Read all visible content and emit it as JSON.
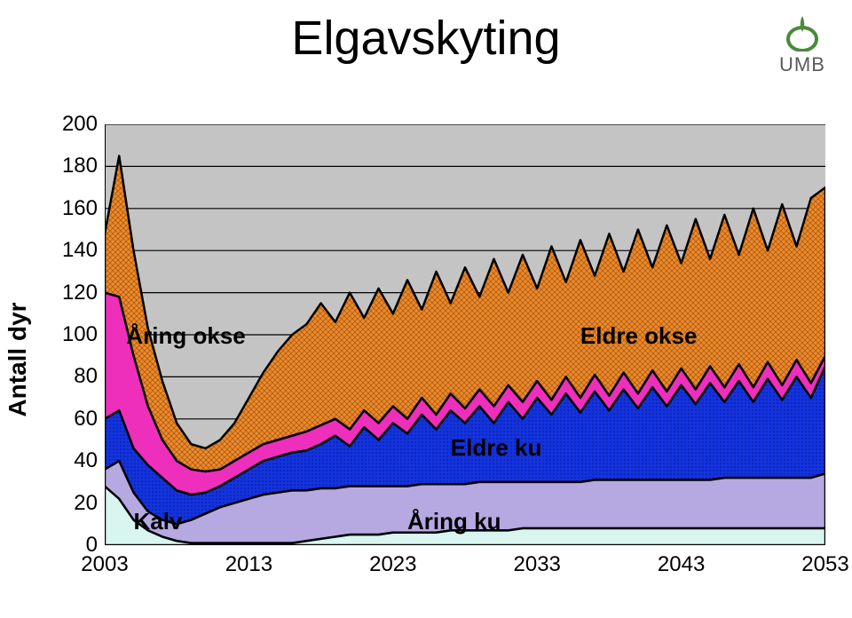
{
  "title": "Elgavskyting",
  "logo_text": "UMB",
  "ylabel": "Antall dyr",
  "chart": {
    "type": "area",
    "background_color": "#c4c4c4",
    "grid_color": "#000000",
    "grid_width": 1.2,
    "xlim": [
      2003,
      2053
    ],
    "ylim": [
      0,
      200
    ],
    "ytick_step": 20,
    "xtick_step": 10,
    "x": [
      2003,
      2004,
      2005,
      2006,
      2007,
      2008,
      2009,
      2010,
      2011,
      2012,
      2013,
      2014,
      2015,
      2016,
      2017,
      2018,
      2019,
      2020,
      2021,
      2022,
      2023,
      2024,
      2025,
      2026,
      2027,
      2028,
      2029,
      2030,
      2031,
      2032,
      2033,
      2034,
      2035,
      2036,
      2037,
      2038,
      2039,
      2040,
      2041,
      2042,
      2043,
      2044,
      2045,
      2046,
      2047,
      2048,
      2049,
      2050,
      2051,
      2052,
      2053
    ],
    "series": [
      {
        "key": "kalv",
        "label": "Kalv",
        "color": "#d9f5f0",
        "label_xy": [
          2005,
          12
        ],
        "y": [
          28,
          22,
          12,
          7,
          4,
          2,
          1,
          1,
          1,
          1,
          1,
          1,
          1,
          1,
          2,
          3,
          4,
          5,
          5,
          5,
          6,
          6,
          6,
          6,
          7,
          7,
          7,
          7,
          7,
          8,
          8,
          8,
          8,
          8,
          8,
          8,
          8,
          8,
          8,
          8,
          8,
          8,
          8,
          8,
          8,
          8,
          8,
          8,
          8,
          8,
          8
        ]
      },
      {
        "key": "aring_ku",
        "label": "Åring ku",
        "color": "#b6a9e2",
        "label_xy": [
          2024,
          12
        ],
        "y": [
          36,
          40,
          25,
          16,
          12,
          10,
          12,
          15,
          18,
          20,
          22,
          24,
          25,
          26,
          26,
          27,
          27,
          28,
          28,
          28,
          28,
          28,
          29,
          29,
          29,
          29,
          30,
          30,
          30,
          30,
          30,
          30,
          30,
          30,
          31,
          31,
          31,
          31,
          31,
          31,
          31,
          31,
          31,
          32,
          32,
          32,
          32,
          32,
          32,
          32,
          34
        ]
      },
      {
        "key": "eldre_ku",
        "label": "Eldre ku",
        "color": "#1333e0",
        "label_xy": [
          2027,
          47
        ],
        "pattern": "dots",
        "y": [
          60,
          64,
          46,
          38,
          32,
          26,
          24,
          25,
          28,
          32,
          36,
          40,
          42,
          44,
          45,
          48,
          52,
          47,
          56,
          50,
          58,
          53,
          62,
          55,
          64,
          58,
          66,
          58,
          68,
          60,
          70,
          62,
          72,
          63,
          73,
          64,
          74,
          65,
          75,
          66,
          76,
          67,
          77,
          68,
          78,
          68,
          79,
          69,
          80,
          70,
          85
        ]
      },
      {
        "key": "aring_okse",
        "label": "Åring okse",
        "color": "#ee2fbb",
        "label_xy": [
          2004.5,
          100
        ],
        "y": [
          120,
          118,
          90,
          66,
          50,
          40,
          36,
          35,
          36,
          40,
          44,
          48,
          50,
          52,
          54,
          57,
          60,
          55,
          64,
          58,
          66,
          60,
          70,
          62,
          72,
          65,
          74,
          66,
          76,
          68,
          78,
          69,
          80,
          70,
          81,
          71,
          82,
          72,
          83,
          73,
          84,
          74,
          85,
          75,
          86,
          75,
          87,
          76,
          88,
          77,
          90
        ]
      },
      {
        "key": "eldre_okse",
        "label": "Eldre okse",
        "color": "#e98c2e",
        "label_xy": [
          2036,
          100
        ],
        "pattern": "cross",
        "y": [
          148,
          185,
          140,
          103,
          78,
          58,
          48,
          46,
          50,
          58,
          70,
          82,
          92,
          100,
          105,
          115,
          106,
          120,
          108,
          122,
          110,
          126,
          112,
          130,
          115,
          132,
          118,
          136,
          120,
          138,
          122,
          142,
          125,
          145,
          128,
          148,
          130,
          150,
          132,
          152,
          134,
          155,
          136,
          157,
          138,
          160,
          140,
          162,
          142,
          165,
          170
        ]
      }
    ],
    "stroke": "#000000",
    "stroke_width": 2.5
  },
  "colors": {
    "title": "#000000",
    "tick": "#000000",
    "logo_green": "#4a8a3a",
    "logo_text": "#5a5a5a"
  }
}
